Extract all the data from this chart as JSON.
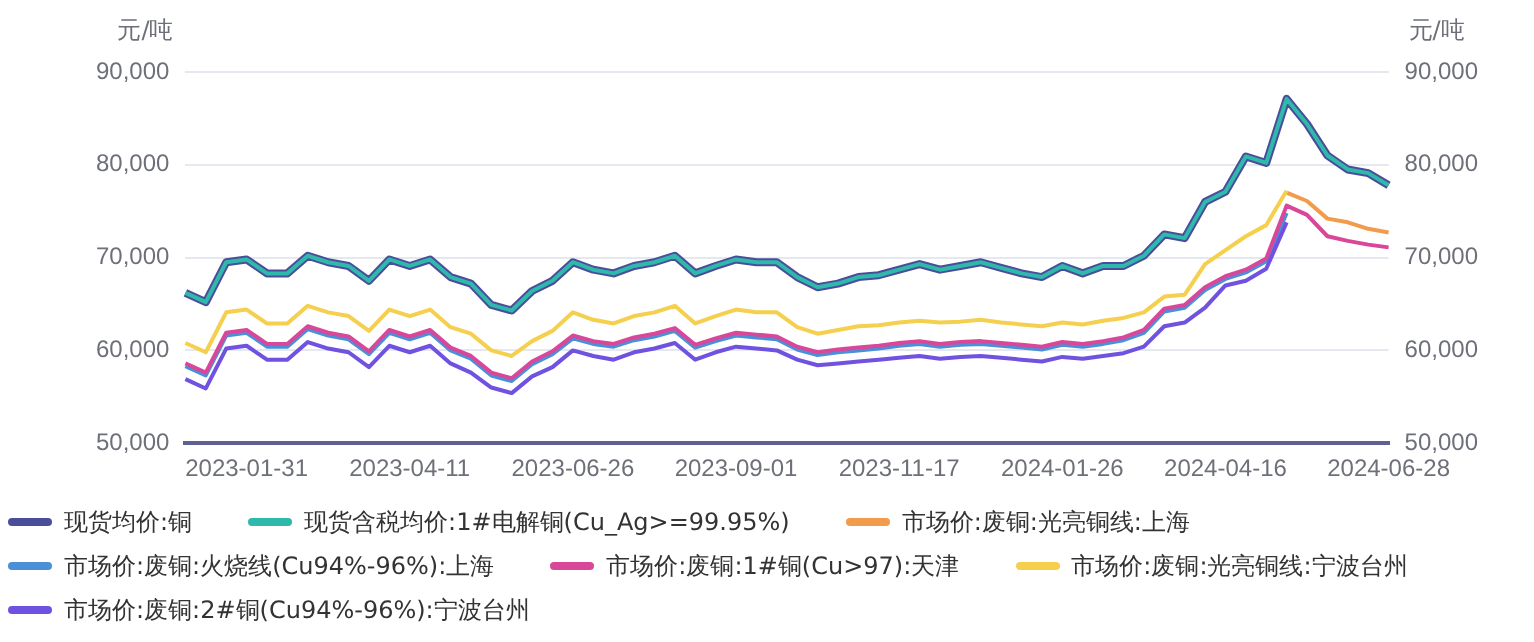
{
  "chart_data": {
    "type": "line",
    "ylabel": "元/吨",
    "y2label": "元/吨",
    "categories": [
      null,
      null,
      null,
      "2023-01-31",
      null,
      null,
      null,
      null,
      null,
      null,
      null,
      "2023-04-11",
      null,
      null,
      null,
      null,
      null,
      null,
      null,
      "2023-06-26",
      null,
      null,
      null,
      null,
      null,
      null,
      null,
      "2023-09-01",
      null,
      null,
      null,
      null,
      null,
      null,
      null,
      "2023-11-17",
      null,
      null,
      null,
      null,
      null,
      null,
      null,
      "2024-01-26",
      null,
      null,
      null,
      null,
      null,
      null,
      null,
      "2024-04-16",
      null,
      null,
      null,
      null,
      null,
      null,
      null,
      "2024-06-28"
    ],
    "ylim": [
      50000,
      90000
    ],
    "yticks": [
      {
        "value": 50000,
        "label": "50,000"
      },
      {
        "value": 60000,
        "label": "60,000"
      },
      {
        "value": 70000,
        "label": "70,000"
      },
      {
        "value": 80000,
        "label": "80,000"
      },
      {
        "value": 90000,
        "label": "90,000"
      }
    ],
    "y2lim": [
      50000,
      90000
    ],
    "y2ticks": [
      {
        "value": 50000,
        "label": "50,000"
      },
      {
        "value": 60000,
        "label": "60,000"
      },
      {
        "value": 70000,
        "label": "70,000"
      },
      {
        "value": 80000,
        "label": "80,000"
      },
      {
        "value": 90000,
        "label": "90,000"
      }
    ],
    "grid": "y",
    "legend": "bottom",
    "marker": "none",
    "line_style": "solid",
    "series": [
      {
        "name": "现货均价:铜",
        "color": "#4a4e9a",
        "values": [
          66200,
          65200,
          69500,
          69800,
          68300,
          68300,
          70200,
          69500,
          69100,
          67500,
          69800,
          69100,
          69800,
          67900,
          67200,
          64900,
          64300,
          66400,
          67500,
          69500,
          68700,
          68300,
          69100,
          69500,
          70200,
          68300,
          69100,
          69800,
          69500,
          69500,
          67900,
          66800,
          67200,
          67900,
          68100,
          68700,
          69300,
          68700,
          69100,
          69500,
          68900,
          68300,
          67900,
          69100,
          68300,
          69100,
          69100,
          70200,
          72500,
          72100,
          76000,
          77100,
          80900,
          80200,
          87100,
          84400,
          81000,
          79500,
          79100,
          77800
        ]
      },
      {
        "name": "现货含税均价:1#电解铜(Cu_Ag>=99.95%)",
        "color": "#2fb8ac",
        "values": [
          66200,
          65200,
          69500,
          69800,
          68300,
          68300,
          70200,
          69500,
          69100,
          67500,
          69800,
          69100,
          69800,
          67900,
          67200,
          64900,
          64300,
          66400,
          67500,
          69500,
          68700,
          68300,
          69100,
          69500,
          70200,
          68300,
          69100,
          69800,
          69500,
          69500,
          67900,
          66800,
          67200,
          67900,
          68100,
          68700,
          69300,
          68700,
          69100,
          69500,
          68900,
          68300,
          67900,
          69100,
          68300,
          69100,
          69100,
          70200,
          72500,
          72100,
          76000,
          77100,
          80900,
          80200,
          87100,
          84400,
          81000,
          79500,
          79100,
          77800
        ]
      },
      {
        "name": "市场价:废铜:光亮铜线:上海",
        "color": "#f39b4c",
        "values": [
          null,
          null,
          null,
          null,
          null,
          null,
          null,
          null,
          null,
          null,
          null,
          null,
          null,
          null,
          null,
          null,
          null,
          null,
          null,
          null,
          null,
          null,
          null,
          null,
          null,
          null,
          null,
          null,
          null,
          null,
          null,
          null,
          null,
          null,
          null,
          null,
          null,
          null,
          null,
          null,
          null,
          null,
          null,
          null,
          null,
          null,
          null,
          null,
          null,
          null,
          null,
          null,
          null,
          null,
          77000,
          76100,
          74200,
          73800,
          73100,
          72700
        ]
      },
      {
        "name": "市场价:废铜:火烧线(Cu94%-96%):上海",
        "color": "#4a90d9",
        "values": [
          58300,
          57300,
          61600,
          61900,
          60400,
          60400,
          62300,
          61600,
          61200,
          59600,
          61900,
          61200,
          61900,
          60000,
          59100,
          57300,
          56700,
          58500,
          59600,
          61300,
          60700,
          60400,
          61100,
          61500,
          62100,
          60300,
          61000,
          61600,
          61400,
          61200,
          60100,
          59500,
          59800,
          60000,
          60200,
          60500,
          60700,
          60400,
          60600,
          60700,
          60500,
          60300,
          60100,
          60600,
          60400,
          60700,
          61100,
          61900,
          64200,
          64600,
          66500,
          67700,
          68400,
          69600,
          74800,
          null,
          null,
          null,
          null,
          null
        ]
      },
      {
        "name": "市场价:废铜:1#铜(Cu>97):天津",
        "color": "#d9479a",
        "values": [
          58600,
          57600,
          61900,
          62200,
          60700,
          60700,
          62600,
          61900,
          61500,
          59900,
          62200,
          61500,
          62200,
          60300,
          59400,
          57600,
          57000,
          58800,
          59900,
          61600,
          61000,
          60700,
          61400,
          61800,
          62400,
          60600,
          61300,
          61900,
          61700,
          61500,
          60400,
          59800,
          60100,
          60300,
          60500,
          60800,
          61000,
          60700,
          60900,
          61000,
          60800,
          60600,
          60400,
          60900,
          60700,
          61000,
          61400,
          62200,
          64500,
          64900,
          66800,
          68000,
          68700,
          69900,
          75600,
          74600,
          72300,
          71800,
          71400,
          71100
        ]
      },
      {
        "name": "市场价:废铜:光亮铜线:宁波台州",
        "color": "#f5cf4e",
        "values": [
          60800,
          59800,
          64100,
          64400,
          62900,
          62900,
          64800,
          64100,
          63700,
          62100,
          64400,
          63700,
          64400,
          62500,
          61800,
          60000,
          59400,
          61000,
          62100,
          64100,
          63300,
          62900,
          63700,
          64100,
          64800,
          62900,
          63700,
          64400,
          64100,
          64100,
          62500,
          61800,
          62200,
          62600,
          62700,
          63000,
          63200,
          63000,
          63100,
          63300,
          63000,
          62800,
          62600,
          63000,
          62800,
          63200,
          63500,
          64100,
          65800,
          66000,
          69300,
          70800,
          72300,
          73500,
          77200,
          null,
          null,
          null,
          null,
          null
        ]
      },
      {
        "name": "市场价:废铜:2#铜(Cu94%-96%):宁波台州",
        "color": "#7052e0",
        "values": [
          56900,
          55900,
          60200,
          60500,
          59000,
          59000,
          60900,
          60200,
          59800,
          58200,
          60500,
          59800,
          60500,
          58600,
          57600,
          56000,
          55400,
          57200,
          58200,
          60000,
          59400,
          59000,
          59800,
          60200,
          60800,
          59000,
          59800,
          60400,
          60200,
          60000,
          59000,
          58400,
          58600,
          58800,
          59000,
          59200,
          59400,
          59100,
          59300,
          59400,
          59200,
          59000,
          58800,
          59300,
          59100,
          59400,
          59700,
          60400,
          62600,
          63000,
          64600,
          67000,
          67500,
          68800,
          73800,
          null,
          null,
          null,
          null,
          null
        ]
      }
    ]
  }
}
